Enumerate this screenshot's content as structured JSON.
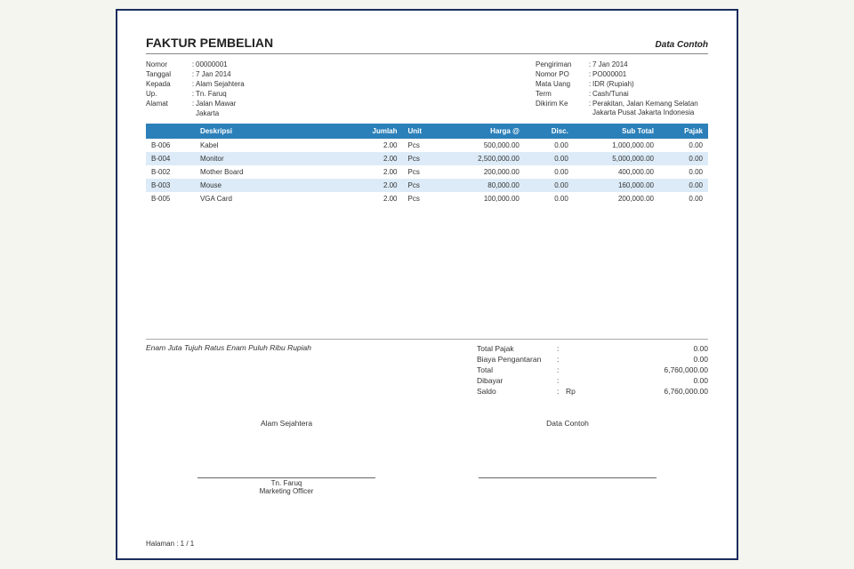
{
  "document": {
    "title": "FAKTUR PEMBELIAN",
    "company": "Data Contoh"
  },
  "left_meta": [
    {
      "label": "Nomor",
      "value": "00000001"
    },
    {
      "label": "Tanggal",
      "value": "7 Jan 2014"
    },
    {
      "label": "Kepada",
      "value": "Alam Sejahtera"
    },
    {
      "label": "Up.",
      "value": "Tn. Faruq"
    },
    {
      "label": "Alamat",
      "value": "Jalan Mawar"
    },
    {
      "label": "",
      "value": "Jakarta"
    }
  ],
  "right_meta": [
    {
      "label": "Pengiriman",
      "value": "7 Jan 2014"
    },
    {
      "label": "Nomor PO",
      "value": "PO000001"
    },
    {
      "label": "Mata Uang",
      "value": "IDR (Rupiah)"
    },
    {
      "label": "Term",
      "value": "Cash/Tunai"
    },
    {
      "label": "Dikirim Ke",
      "value": "Perakitan, Jalan Kemang Selatan Jakarta Pusat Jakarta Indonesia"
    }
  ],
  "table": {
    "headers": {
      "code": "",
      "desc": "Deskripsi",
      "qty": "Jumlah",
      "unit": "Unit",
      "price": "Harga @",
      "disc": "Disc.",
      "sub": "Sub Total",
      "tax": "Pajak"
    },
    "rows": [
      {
        "code": "B-006",
        "desc": "Kabel",
        "qty": "2.00",
        "unit": "Pcs",
        "price": "500,000.00",
        "disc": "0.00",
        "sub": "1,000,000.00",
        "tax": "0.00"
      },
      {
        "code": "B-004",
        "desc": "Monitor",
        "qty": "2.00",
        "unit": "Pcs",
        "price": "2,500,000.00",
        "disc": "0.00",
        "sub": "5,000,000.00",
        "tax": "0.00"
      },
      {
        "code": "B-002",
        "desc": "Mother Board",
        "qty": "2.00",
        "unit": "Pcs",
        "price": "200,000.00",
        "disc": "0.00",
        "sub": "400,000.00",
        "tax": "0.00"
      },
      {
        "code": "B-003",
        "desc": "Mouse",
        "qty": "2.00",
        "unit": "Pcs",
        "price": "80,000.00",
        "disc": "0.00",
        "sub": "160,000.00",
        "tax": "0.00"
      },
      {
        "code": "B-005",
        "desc": "VGA Card",
        "qty": "2.00",
        "unit": "Pcs",
        "price": "100,000.00",
        "disc": "0.00",
        "sub": "200,000.00",
        "tax": "0.00"
      }
    ]
  },
  "amount_words": "Enam Juta Tujuh Ratus Enam Puluh Ribu Rupiah",
  "totals": [
    {
      "label": "Total Pajak",
      "currency": "",
      "value": "0.00"
    },
    {
      "label": "Biaya Pengantaran",
      "currency": "",
      "value": "0.00"
    },
    {
      "label": "Total",
      "currency": "",
      "value": "6,760,000.00"
    },
    {
      "label": "Dibayar",
      "currency": "",
      "value": "0.00"
    },
    {
      "label": "Saldo",
      "currency": "Rp",
      "value": "6,760,000.00"
    }
  ],
  "signatures": {
    "left": {
      "top": "Alam Sejahtera",
      "name": "Tn. Faruq",
      "role": "Marketing Officer"
    },
    "right": {
      "top": "Data Contoh",
      "name": "",
      "role": ""
    }
  },
  "footer": "Halaman :  1   /   1",
  "style": {
    "header_bg": "#2b80b9",
    "alt_row_bg": "#dcebf7",
    "border_color": "#1a2d5c"
  }
}
